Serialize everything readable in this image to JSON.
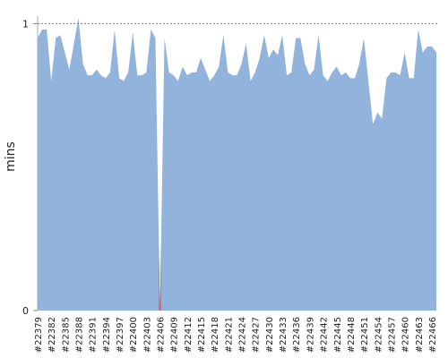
{
  "chart_data": {
    "type": "area",
    "ylabel": "mins",
    "categories": [
      "#22379",
      null,
      null,
      "#22382",
      null,
      null,
      "#22385",
      null,
      null,
      "#22388",
      null,
      null,
      "#22391",
      null,
      null,
      "#22394",
      null,
      null,
      "#22397",
      null,
      null,
      "#22400",
      null,
      null,
      "#22403",
      null,
      null,
      "#22406",
      null,
      null,
      "#22409",
      null,
      null,
      "#22412",
      null,
      null,
      "#22415",
      null,
      null,
      "#22418",
      null,
      null,
      "#22421",
      null,
      null,
      "#22424",
      null,
      null,
      "#22427",
      null,
      null,
      "#22430",
      null,
      null,
      "#22433",
      null,
      null,
      "#22436",
      null,
      null,
      "#22439",
      null,
      null,
      "#22442",
      null,
      null,
      "#22445",
      null,
      null,
      "#22448",
      null,
      null,
      "#22451",
      null,
      null,
      "#22454",
      null,
      null,
      "#22457",
      null,
      null,
      "#22460",
      null,
      null,
      "#22463",
      null,
      null,
      "#22466",
      null
    ],
    "values": [
      0.95,
      0.98,
      0.98,
      0.8,
      0.95,
      0.96,
      0.9,
      0.84,
      0.93,
      1.02,
      0.86,
      0.82,
      0.82,
      0.84,
      0.82,
      0.81,
      0.83,
      0.98,
      0.81,
      0.8,
      0.83,
      0.97,
      0.82,
      0.82,
      0.83,
      0.98,
      0.95,
      0,
      0.95,
      0.83,
      0.82,
      0.8,
      0.85,
      0.82,
      0.83,
      0.83,
      0.88,
      0.84,
      0.8,
      0.82,
      0.85,
      0.96,
      0.83,
      0.82,
      0.82,
      0.86,
      0.93,
      0.8,
      0.83,
      0.88,
      0.96,
      0.88,
      0.91,
      0.89,
      0.96,
      0.82,
      0.83,
      0.95,
      0.95,
      0.86,
      0.82,
      0.84,
      0.96,
      0.82,
      0.8,
      0.83,
      0.85,
      0.82,
      0.83,
      0.81,
      0.81,
      0.86,
      0.95,
      0.8,
      0.65,
      0.69,
      0.67,
      0.81,
      0.83,
      0.83,
      0.82,
      0.9,
      0.81,
      0.81,
      0.98,
      0.9,
      0.92,
      0.92,
      0.9
    ],
    "color": "#92b3dc",
    "failure_color": "#e05a5a",
    "ylim": [
      0,
      1.02
    ],
    "yticks": [
      0,
      1
    ],
    "grid": true
  }
}
